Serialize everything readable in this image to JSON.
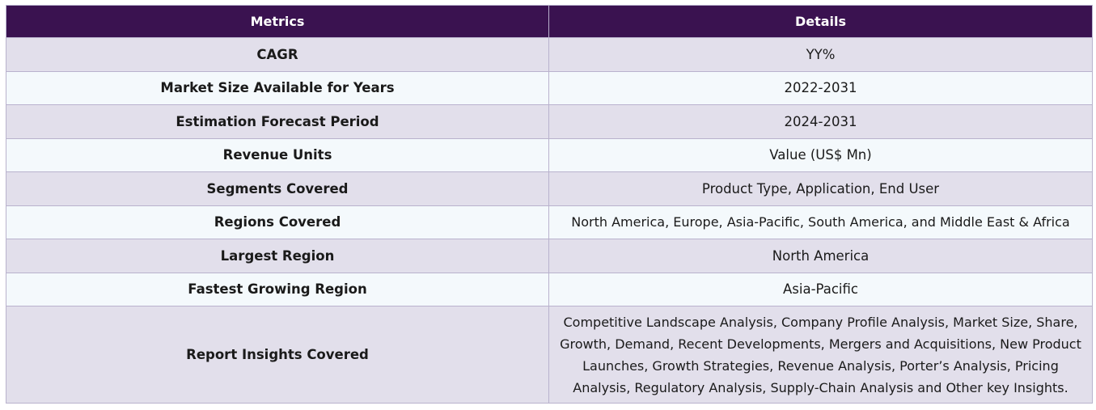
{
  "table": {
    "headers": [
      "Metrics",
      "Details"
    ],
    "rows": [
      {
        "metric": "CAGR",
        "details": "YY%"
      },
      {
        "metric": "Market Size Available for Years",
        "details": "2022-2031"
      },
      {
        "metric": "Estimation Forecast Period",
        "details": "2024-2031"
      },
      {
        "metric": "Revenue Units",
        "details": "Value (US$ Mn)"
      },
      {
        "metric": "Segments Covered",
        "details": "Product Type, Application, End User"
      },
      {
        "metric": "Regions Covered",
        "details": "North America, Europe, Asia-Pacific, South America, and Middle East & Africa"
      },
      {
        "metric": "Largest Region",
        "details": "North America"
      },
      {
        "metric": "Fastest Growing Region",
        "details": "Asia-Pacific"
      },
      {
        "metric": "Report Insights Covered",
        "details": "Competitive Landscape Analysis, Company Profile Analysis, Market Size, Share, Growth, Demand, Recent Developments, Mergers and Acquisitions, New Product Launches, Growth Strategies, Revenue Analysis, Porter’s Analysis, Pricing Analysis, Regulatory Analysis, Supply-Chain Analysis and Other key Insights."
      }
    ]
  },
  "colors": {
    "header_bg": "#3a1250",
    "row_odd_bg": "#e2dfeb",
    "row_even_bg": "#f4f9fc",
    "border": "#b9b2cd"
  }
}
